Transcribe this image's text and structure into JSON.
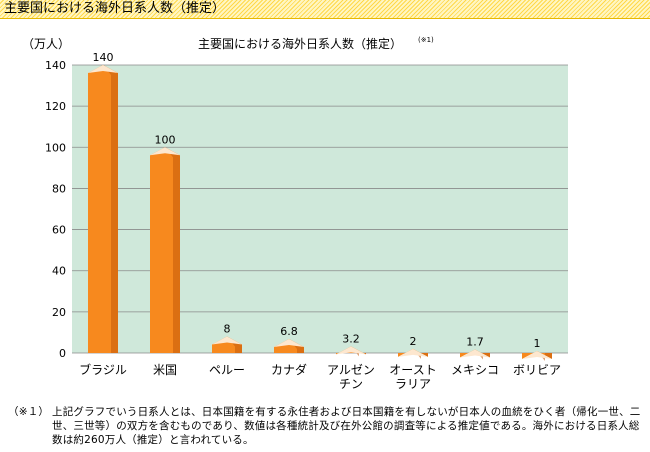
{
  "header": {
    "title": "主要国における海外日系人数（推定）"
  },
  "chart_data": {
    "type": "bar",
    "title": "主要国における海外日系人数（推定）",
    "title_note": "(※1)",
    "ylabel": "（万人）",
    "ylim": [
      0,
      140
    ],
    "yticks": [
      0,
      20,
      40,
      60,
      80,
      100,
      120,
      140
    ],
    "grid": true,
    "categories": [
      "ブラジル",
      "米国",
      "ペルー",
      "カナダ",
      "アルゼンチン",
      "オーストラリア",
      "メキシコ",
      "ボリビア"
    ],
    "category_lines": [
      [
        "ブラジル"
      ],
      [
        "米国"
      ],
      [
        "ペルー"
      ],
      [
        "カナダ"
      ],
      [
        "アルゼン",
        "チン"
      ],
      [
        "オースト",
        "ラリア"
      ],
      [
        "メキシコ"
      ],
      [
        "ボリビア"
      ]
    ],
    "values": [
      140,
      100,
      8,
      6.8,
      3.2,
      2,
      1.7,
      1
    ],
    "value_labels": [
      "140",
      "100",
      "8",
      "6.8",
      "3.2",
      "2",
      "1.7",
      "1"
    ],
    "colors": {
      "plot_bg": "#cfe8da",
      "bar": "#f7891e",
      "bar_dark": "#c55a0a",
      "bar_light": "#fde7cf",
      "grid": "#8a8a8a"
    }
  },
  "footnote": {
    "mark": "（※１）",
    "text": "上記グラフでいう日系人とは、日本国籍を有する永住者および日本国籍を有しないが日本人の血統をひく者（帰化一世、二世、三世等）の双方を含むものであり、数値は各種統計及び在外公館の調査等による推定値である。海外における日系人総数は約260万人（推定）と言われている。"
  }
}
